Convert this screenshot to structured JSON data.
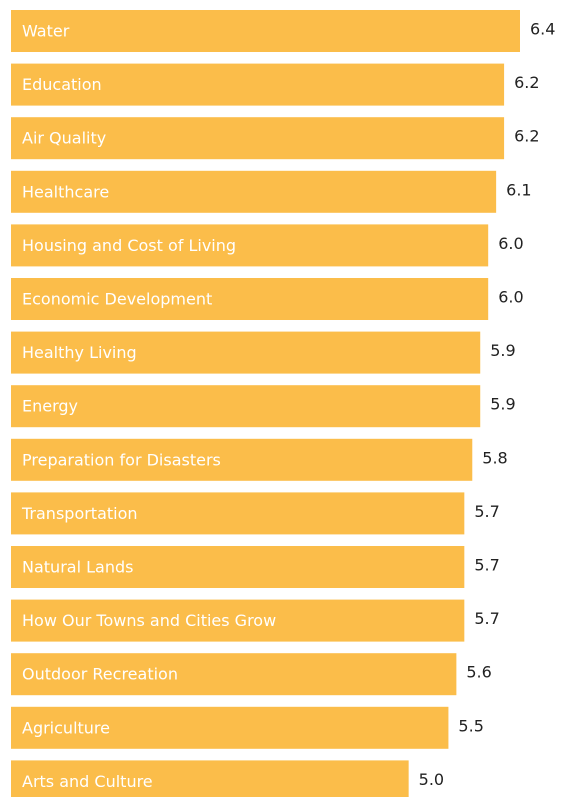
{
  "chart_data": {
    "type": "barh",
    "color": "#fbbd4a",
    "categories": [
      "Water",
      "Education",
      "Air Quality",
      "Healthcare",
      "Housing and Cost of Living",
      "Economic Development",
      "Healthy Living",
      "Energy",
      "Preparation for Disasters",
      "Transportation",
      "Natural Lands",
      "How Our Towns and Cities Grow",
      "Outdoor Recreation",
      "Agriculture",
      "Arts and Culture"
    ],
    "values": [
      6.4,
      6.2,
      6.2,
      6.1,
      6.0,
      6.0,
      5.9,
      5.9,
      5.8,
      5.7,
      5.7,
      5.7,
      5.6,
      5.5,
      5.0
    ],
    "value_labels": [
      "6.4",
      "6.2",
      "6.2",
      "6.1",
      "6.0",
      "6.0",
      "5.9",
      "5.9",
      "5.8",
      "5.7",
      "5.7",
      "5.7",
      "5.6",
      "5.5",
      "5.0"
    ]
  }
}
